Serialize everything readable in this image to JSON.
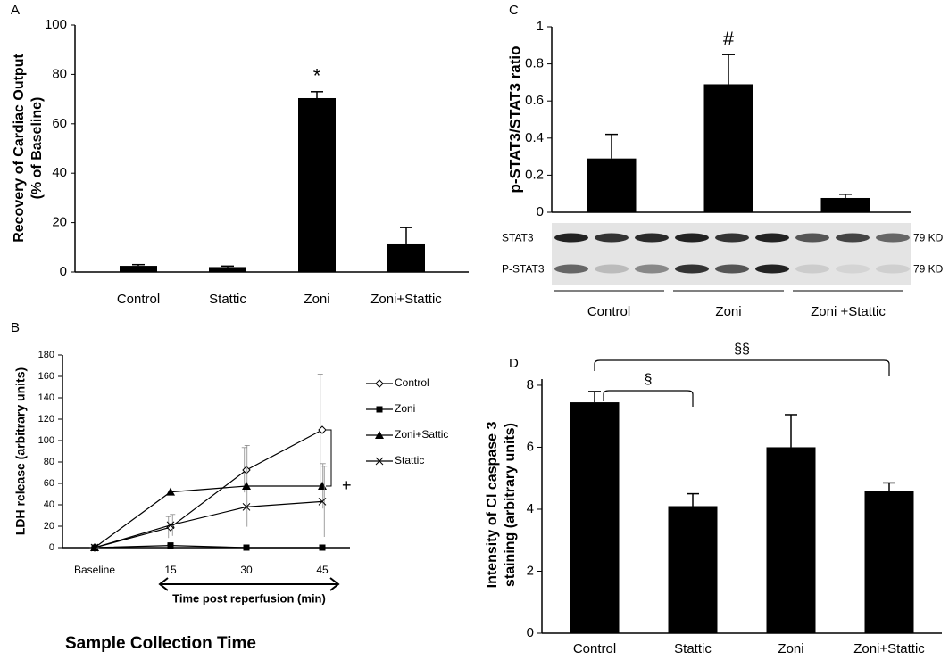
{
  "chart_data": [
    {
      "type": "bar",
      "panel": "A",
      "ylabel": [
        "Recovery of Cardiac Output",
        "(% of Baseline)"
      ],
      "categories": [
        "Control",
        "Stattic",
        "Zoni",
        "Zoni+Stattic"
      ],
      "values": [
        2.5,
        2,
        70.4,
        11.2
      ],
      "errors": [
        0.5,
        0.4,
        2.6,
        6.8
      ],
      "color": "#000000",
      "ylim": [
        0,
        100
      ],
      "yticks": [
        0,
        20,
        40,
        60,
        80,
        100
      ],
      "annotations": [
        {
          "text": "*",
          "category": "Zoni"
        }
      ]
    },
    {
      "type": "line",
      "panel": "B",
      "ylabel": "LDH release (arbitrary units)",
      "xlabel": "Sample Collection Time",
      "x_note": "Time post reperfusion (min)",
      "categories": [
        "Baseline",
        "15",
        "30",
        "45"
      ],
      "series": [
        {
          "name": "Control",
          "marker": "diamond-open",
          "color": "#000000",
          "values": [
            0,
            19,
            72.5,
            110
          ],
          "errors": [
            0,
            10,
            21,
            52
          ]
        },
        {
          "name": "Zoni",
          "marker": "square",
          "color": "#000000",
          "values": [
            0,
            2,
            0,
            0
          ],
          "errors": [
            0,
            1,
            0,
            0
          ]
        },
        {
          "name": "Zoni+Sattic",
          "marker": "triangle",
          "color": "#000000",
          "values": [
            0,
            52,
            57.5,
            57.5
          ],
          "errors": [
            0,
            0,
            38,
            21
          ]
        },
        {
          "name": "Stattic",
          "marker": "x",
          "color": "#000000",
          "values": [
            0,
            21,
            38,
            43
          ],
          "errors": [
            0,
            10,
            0,
            33
          ]
        }
      ],
      "ylim": [
        0,
        180
      ],
      "yticks": [
        0,
        20,
        40,
        60,
        80,
        100,
        120,
        140,
        160,
        180
      ],
      "annotations": [
        {
          "text": "+"
        }
      ]
    },
    {
      "type": "bar",
      "panel": "C",
      "ylabel": "p-STAT3/STAT3 ratio",
      "categories": [
        "Control",
        "Zoni",
        "Zoni +Stattic"
      ],
      "values": [
        0.29,
        0.69,
        0.077
      ],
      "errors": [
        0.13,
        0.16,
        0.02
      ],
      "color": "#000000",
      "ylim": [
        0,
        1
      ],
      "yticks": [
        0,
        0.2,
        0.4,
        0.6,
        0.8,
        1
      ],
      "annotations": [
        {
          "text": "#",
          "category": "Zoni"
        }
      ],
      "blot": [
        {
          "label": "STAT3",
          "size": "79 KD"
        },
        {
          "label": "P-STAT3",
          "size": "79 KD"
        }
      ]
    },
    {
      "type": "bar",
      "panel": "D",
      "ylabel": [
        "Intensity of Cl caspase 3",
        "staining (arbitrary units)"
      ],
      "categories": [
        "Control",
        "Stattic",
        "Zoni",
        "Zoni+Stattic"
      ],
      "values": [
        7.45,
        4.1,
        6.0,
        4.6
      ],
      "errors": [
        0.35,
        0.4,
        1.05,
        0.25
      ],
      "color": "#000000",
      "ylim": [
        0,
        8.2
      ],
      "yticks": [
        0,
        2,
        4,
        6,
        8
      ],
      "annotations": [
        {
          "text": "§",
          "from": "Control",
          "to": "Stattic"
        },
        {
          "text": "§§",
          "from": "Control",
          "to": "Zoni+Stattic"
        }
      ]
    }
  ]
}
